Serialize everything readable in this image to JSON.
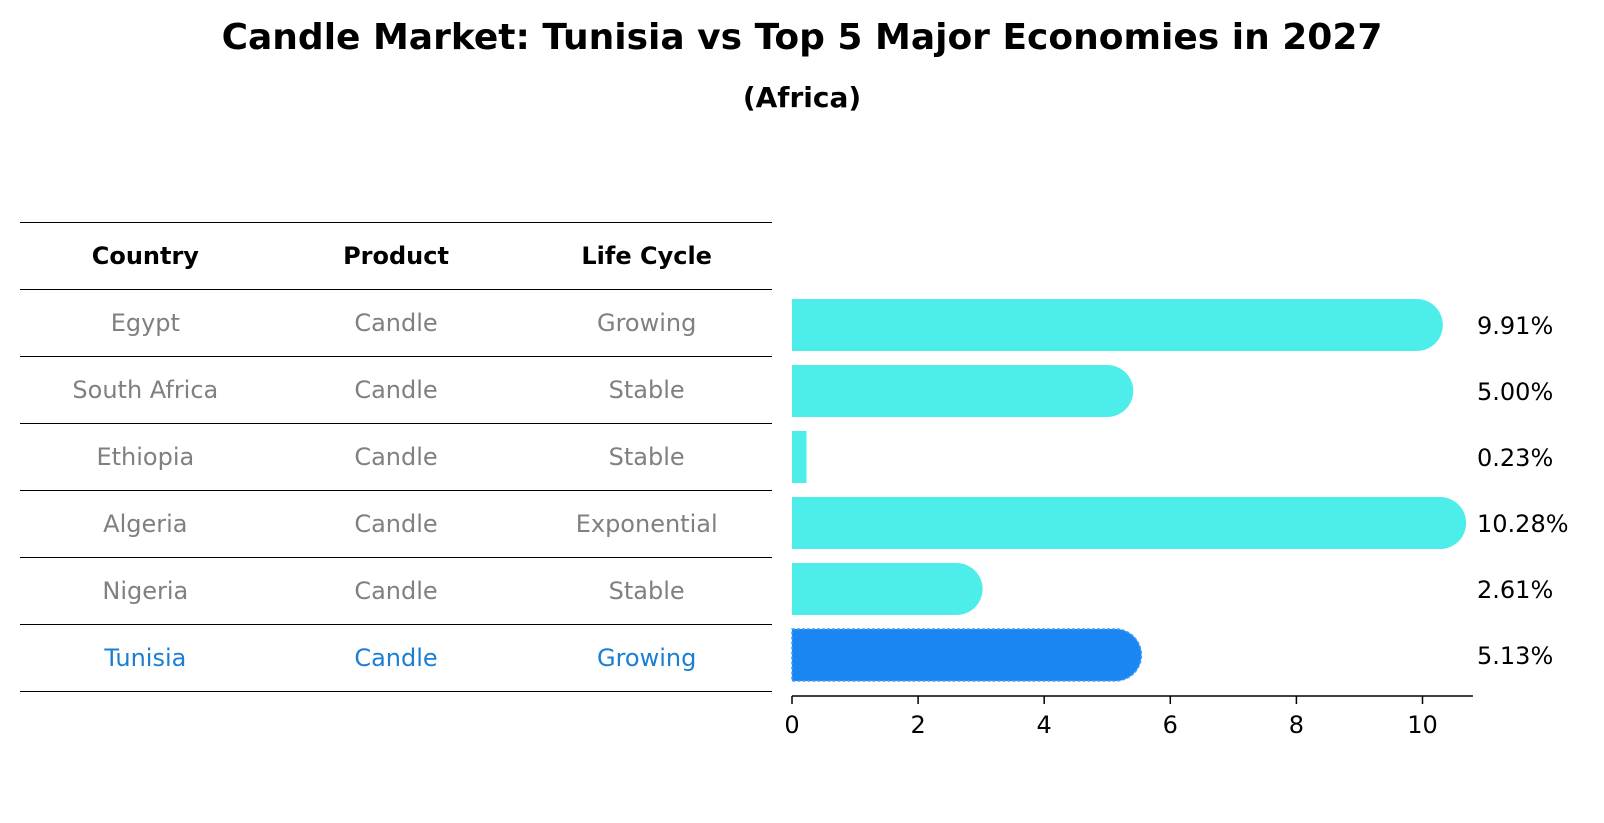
{
  "title": "Candle Market: Tunisia vs Top 5 Major Economies in 2027",
  "subtitle": "(Africa)",
  "table": {
    "headers": [
      "Country",
      "Product",
      "Life Cycle"
    ],
    "rows": [
      {
        "country": "Egypt",
        "product": "Candle",
        "life_cycle": "Growing"
      },
      {
        "country": "South Africa",
        "product": "Candle",
        "life_cycle": "Stable"
      },
      {
        "country": "Ethiopia",
        "product": "Candle",
        "life_cycle": "Stable"
      },
      {
        "country": "Algeria",
        "product": "Candle",
        "life_cycle": "Exponential"
      },
      {
        "country": "Nigeria",
        "product": "Candle",
        "life_cycle": "Stable"
      },
      {
        "country": "Tunisia",
        "product": "Candle",
        "life_cycle": "Growing"
      }
    ]
  },
  "chart_data": {
    "type": "bar",
    "orientation": "horizontal",
    "categories": [
      "Egypt",
      "South Africa",
      "Ethiopia",
      "Algeria",
      "Nigeria",
      "Tunisia"
    ],
    "values": [
      9.91,
      5.0,
      0.23,
      10.28,
      2.61,
      5.13
    ],
    "value_labels": [
      "9.91%",
      "5.00%",
      "0.23%",
      "10.28%",
      "2.61%",
      "5.13%"
    ],
    "highlight": "Tunisia",
    "xlim": [
      0,
      10.8
    ],
    "xticks": [
      0,
      2,
      4,
      6,
      8,
      10
    ],
    "grid": false,
    "colors": {
      "bar": "#4deeea",
      "highlight": "#1a86f2",
      "highlight_text": "#1a7fd4"
    }
  }
}
